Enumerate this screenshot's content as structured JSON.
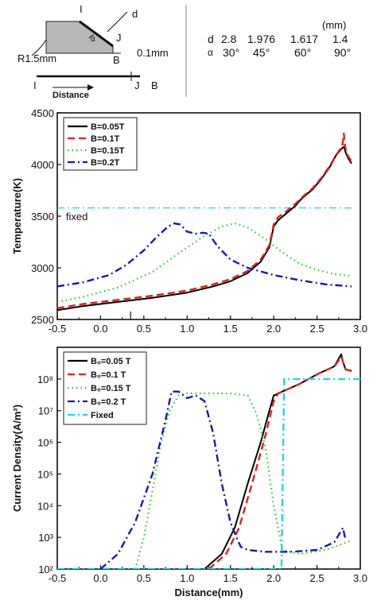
{
  "schematic": {
    "labels": {
      "I": "I",
      "d": "d",
      "J": "J",
      "B": "B",
      "alpha": "α",
      "r": "R1.5mm",
      "gap": "0.1mm"
    },
    "axis": {
      "I": "I",
      "J": "J",
      "B": "B",
      "caption": "Distance"
    }
  },
  "table": {
    "unit": "(mm)",
    "d_label": "d",
    "alpha_label": "α",
    "d_values": [
      "2.8",
      "1.976",
      "1.617",
      "1.4"
    ],
    "alpha_values": [
      "30°",
      "45°",
      "60°",
      "90°"
    ]
  },
  "chart_data": [
    {
      "type": "line",
      "xlabel": "",
      "ylabel": "Temperature(K)",
      "xlim": [
        -0.5,
        3.0
      ],
      "ylim": [
        2500,
        4500
      ],
      "xticks": [
        "-0.5",
        "0.0",
        "0.5",
        "1.0",
        "1.5",
        "2.0",
        "2.5",
        "3.0"
      ],
      "yticks": [
        "2500",
        "3000",
        "3500",
        "4000",
        "4500"
      ],
      "legend": {
        "position": "top-left"
      },
      "annotations": [
        {
          "text": "fixed",
          "x": -0.4,
          "y": 3500
        },
        {
          "text": "I",
          "x": 0.33,
          "y": 2545
        }
      ],
      "reference_lines": [
        {
          "name": "fixed",
          "y": 3580,
          "color": "#22d3e6",
          "dash": "dashdot"
        }
      ],
      "series": [
        {
          "name": "B=0.05T",
          "color": "#000000",
          "dash": "solid",
          "x": [
            -0.5,
            -0.2,
            0.2,
            0.6,
            1.0,
            1.3,
            1.5,
            1.7,
            1.85,
            1.95,
            2.0,
            2.05,
            2.15,
            2.25,
            2.3,
            2.35,
            2.45,
            2.55,
            2.65,
            2.72,
            2.76,
            2.79,
            2.81,
            2.83,
            2.86,
            2.9
          ],
          "y": [
            2590,
            2630,
            2670,
            2710,
            2760,
            2820,
            2870,
            2950,
            3060,
            3200,
            3400,
            3460,
            3530,
            3600,
            3650,
            3690,
            3760,
            3860,
            3980,
            4090,
            4130,
            4160,
            4170,
            4120,
            4060,
            4010
          ]
        },
        {
          "name": "B=0.1T",
          "color": "#e02020",
          "dash": "dashed",
          "x": [
            -0.5,
            -0.2,
            0.2,
            0.6,
            1.0,
            1.3,
            1.5,
            1.7,
            1.85,
            1.95,
            2.0,
            2.05,
            2.15,
            2.25,
            2.3,
            2.35,
            2.45,
            2.55,
            2.65,
            2.72,
            2.76,
            2.79,
            2.8,
            2.81,
            2.82,
            2.83,
            2.86,
            2.9
          ],
          "y": [
            2610,
            2650,
            2690,
            2730,
            2780,
            2840,
            2890,
            2970,
            3080,
            3220,
            3420,
            3490,
            3550,
            3620,
            3660,
            3700,
            3770,
            3870,
            3990,
            4090,
            4140,
            4170,
            4230,
            4300,
            4200,
            4150,
            4080,
            4030
          ]
        },
        {
          "name": "B=0.15T",
          "color": "#22cc22",
          "dash": "dotted",
          "x": [
            -0.5,
            -0.2,
            0.2,
            0.6,
            0.9,
            1.2,
            1.4,
            1.55,
            1.7,
            1.9,
            2.1,
            2.3,
            2.5,
            2.7,
            2.9
          ],
          "y": [
            2670,
            2720,
            2810,
            2960,
            3140,
            3310,
            3400,
            3430,
            3390,
            3280,
            3150,
            3040,
            2980,
            2940,
            2920
          ]
        },
        {
          "name": "B=0.2T",
          "color": "#1a1aa8",
          "dash": "dashdot",
          "x": [
            -0.5,
            -0.2,
            0.1,
            0.3,
            0.5,
            0.65,
            0.78,
            0.85,
            0.92,
            1.0,
            1.1,
            1.18,
            1.25,
            1.35,
            1.5,
            1.7,
            2.0,
            2.3,
            2.6,
            2.9
          ],
          "y": [
            2820,
            2860,
            2930,
            3030,
            3170,
            3300,
            3400,
            3430,
            3420,
            3350,
            3330,
            3340,
            3330,
            3210,
            3080,
            3000,
            2930,
            2880,
            2840,
            2820
          ]
        }
      ]
    },
    {
      "type": "line",
      "xlabel": "Distance(mm)",
      "ylabel": "Current Density(A/m²)",
      "xlim": [
        -0.5,
        3.0
      ],
      "ylim": [
        100,
        1000000000
      ],
      "yscale": "log",
      "xticks": [
        "-0.5",
        "0.0",
        "0.5",
        "1.0",
        "1.5",
        "2.0",
        "2.5",
        "3.0"
      ],
      "yticks": [
        "10²",
        "10³",
        "10⁴",
        "10⁵",
        "10⁶",
        "10⁷",
        "10⁸"
      ],
      "legend": {
        "position": "top-left"
      },
      "series": [
        {
          "name": "B₀=0.05 T",
          "color": "#000000",
          "dash": "solid",
          "x": [
            1.2,
            1.4,
            1.55,
            1.7,
            1.85,
            1.95,
            2.0,
            2.1,
            2.3,
            2.5,
            2.7,
            2.78,
            2.8,
            2.83,
            2.9
          ],
          "y": [
            100,
            300,
            2000,
            50000,
            1000000,
            10000000,
            30000000,
            40000000,
            70000000,
            140000000,
            250000000,
            600000000,
            350000000,
            200000000,
            180000000
          ]
        },
        {
          "name": "B₀=0.1 T",
          "color": "#e02020",
          "dash": "dashed",
          "x": [
            1.25,
            1.45,
            1.6,
            1.75,
            1.9,
            2.0,
            2.05,
            2.1,
            2.3,
            2.5,
            2.7,
            2.78,
            2.8,
            2.83,
            2.9
          ],
          "y": [
            100,
            300,
            2000,
            50000,
            1500000,
            20000000,
            35000000,
            40000000,
            70000000,
            140000000,
            250000000,
            500000000,
            350000000,
            200000000,
            180000000
          ]
        },
        {
          "name": "B₀=0.15 T",
          "color": "#22cc22",
          "dash": "dotted",
          "x": [
            0.4,
            0.5,
            0.6,
            0.7,
            0.8,
            0.9,
            1.0,
            1.2,
            1.5,
            1.7,
            1.8,
            1.9,
            2.0,
            2.1,
            2.3,
            2.6,
            2.9
          ],
          "y": [
            100,
            1000,
            30000,
            1000000,
            10000000,
            30000000,
            35000000,
            35000000,
            35000000,
            30000000,
            8000000,
            800000,
            10000,
            400,
            300,
            400,
            800
          ]
        },
        {
          "name": "B₀=0.2 T",
          "color": "#1a1aa8",
          "dash": "dashdot",
          "x": [
            0.0,
            0.2,
            0.4,
            0.6,
            0.75,
            0.82,
            0.9,
            1.0,
            1.1,
            1.2,
            1.3,
            1.4,
            1.5,
            1.57,
            1.62,
            1.7,
            1.9,
            2.2,
            2.5,
            2.7,
            2.8,
            2.83
          ],
          "y": [
            100,
            300,
            3000,
            100000,
            5000000,
            40000000,
            40000000,
            25000000,
            30000000,
            20000000,
            2000000,
            50000,
            3000,
            1000,
            500,
            400,
            350,
            350,
            400,
            700,
            2000,
            800
          ]
        },
        {
          "name": "Fixed",
          "color": "#22d3e6",
          "dash": "dashdot",
          "x": [
            -0.5,
            2.09,
            2.09,
            2.12,
            3.0
          ],
          "y": [
            100,
            100,
            100,
            100000000,
            100000000
          ]
        }
      ]
    }
  ]
}
